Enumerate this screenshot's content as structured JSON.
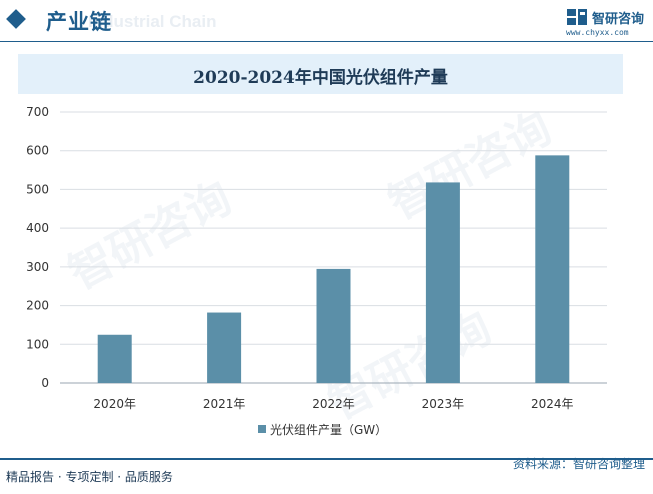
{
  "header": {
    "section_title": "产业链",
    "watermark_en": "Industrial Chain",
    "brand_name": "智研咨询",
    "brand_url": "www.chyxx.com",
    "accent_color": "#1f5d8c"
  },
  "watermark_text": "智研咨询",
  "footer": {
    "left_text": "精品报告 · 专项定制 · 品质服务",
    "right_text": "资料来源：智研咨询整理"
  },
  "chart_data": {
    "type": "bar",
    "title": "2020-2024年中国光伏组件产量",
    "categories": [
      "2020年",
      "2021年",
      "2022年",
      "2023年",
      "2024年"
    ],
    "series": [
      {
        "name": "光伏组件产量（GW）",
        "values": [
          124.6,
          182.0,
          294.7,
          518.1,
          588.0
        ],
        "color": "#5b8fa8"
      }
    ],
    "ylim": [
      0,
      700
    ],
    "yticks": [
      0,
      100,
      200,
      300,
      400,
      500,
      600,
      700
    ],
    "grid": true,
    "legend": "bottom"
  }
}
